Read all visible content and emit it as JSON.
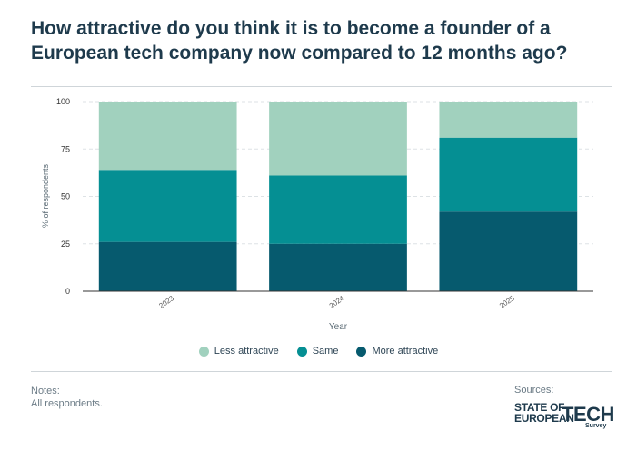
{
  "header": {
    "title": "How attractive do you think it is to become a founder of a European tech company now compared to 12 months ago?"
  },
  "chart_data": {
    "type": "bar",
    "stacked": true,
    "title": "How attractive do you think it is to become a founder of a European tech company now compared to 12 months ago?",
    "xlabel": "Year",
    "ylabel": "% of respondents",
    "ylim": [
      0,
      100
    ],
    "yticks": [
      0,
      25,
      50,
      75,
      100
    ],
    "grid": true,
    "categories": [
      "2023",
      "2024",
      "2025"
    ],
    "series": [
      {
        "name": "More attractive",
        "color": "#065a6e",
        "values": [
          26,
          25,
          42
        ]
      },
      {
        "name": "Same",
        "color": "#058f93",
        "values": [
          38,
          36,
          39
        ]
      },
      {
        "name": "Less attractive",
        "color": "#a1d1be",
        "values": [
          36,
          39,
          19
        ]
      }
    ]
  },
  "legend": {
    "items": [
      {
        "label": "Less attractive",
        "color": "#a1d1be"
      },
      {
        "label": "Same",
        "color": "#058f93"
      },
      {
        "label": "More attractive",
        "color": "#065a6e"
      }
    ]
  },
  "footer": {
    "notes_label": "Notes:",
    "notes_text": "All respondents.",
    "sources_label": "Sources:",
    "logo_line1": "STATE OF",
    "logo_line2": "EUROPEAN",
    "logo_tech": "TECH",
    "logo_survey": "Survey"
  }
}
